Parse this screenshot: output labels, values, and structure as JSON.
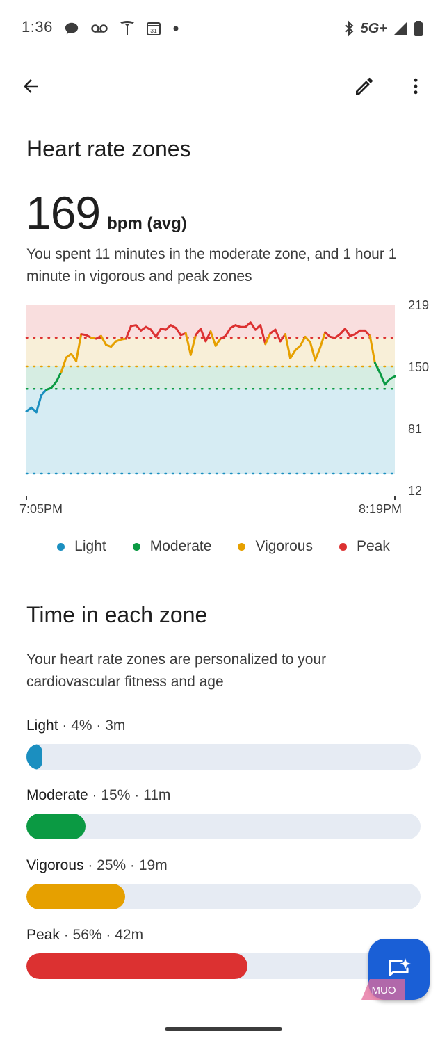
{
  "status_bar": {
    "time": "1:36",
    "left_icons": [
      "chat-bubble-icon",
      "voicemail-icon",
      "tesla-icon",
      "calendar-icon",
      "dot-icon"
    ],
    "calendar_day": "31",
    "network": "5G+",
    "right_icons": [
      "bluetooth-icon",
      "signal-icon",
      "battery-icon"
    ]
  },
  "app_bar": {
    "back_icon": "arrow-back-icon",
    "edit_icon": "pencil-icon",
    "more_icon": "more-vert-icon"
  },
  "header": {
    "title": "Heart rate zones",
    "avg_value": "169",
    "avg_unit": "bpm (avg)",
    "summary": "You spent 11 minutes in the moderate zone, and 1 hour 1 minute in vigorous and peak zones"
  },
  "colors": {
    "light": "#1b8fc0",
    "moderate": "#0b9a43",
    "vigorous": "#e6a000",
    "peak": "#dc3131",
    "light_bg": "#d6ecf3",
    "moderate_bg": "#d6ede2",
    "vigorous_bg": "#f8efd8",
    "peak_bg": "#f9dede",
    "track": "#e6ebf3",
    "fab": "#1a5fd6"
  },
  "chart_data": {
    "type": "line",
    "title": "",
    "xlabel": "",
    "ylabel": "",
    "y_ticks": [
      219,
      150,
      81,
      12
    ],
    "ylim": [
      12,
      219
    ],
    "x_ticks": [
      "7:05PM",
      "8:19PM"
    ],
    "zone_thresholds": {
      "moderate": 125,
      "vigorous": 150,
      "peak": 182
    },
    "grid": "dotted zone threshold lines",
    "series": [
      {
        "x": [
          0,
          1,
          2,
          3,
          4,
          5,
          6,
          7,
          8,
          9,
          10,
          11,
          12,
          13,
          14,
          15,
          16,
          17,
          18,
          19,
          20,
          21,
          22,
          23,
          24,
          25,
          26,
          27,
          28,
          29,
          30,
          31,
          32,
          33,
          34,
          35,
          36,
          37,
          38,
          39,
          40,
          41,
          42,
          43,
          44,
          45,
          46,
          47,
          48,
          49,
          50,
          51,
          52,
          53,
          54,
          55,
          56,
          57,
          58,
          59,
          60,
          61,
          62,
          63,
          64,
          65,
          66,
          67,
          68,
          69,
          70,
          71,
          72,
          73,
          74
        ],
        "y": [
          100,
          104,
          99,
          118,
          124,
          126,
          133,
          144,
          160,
          164,
          156,
          186,
          185,
          182,
          181,
          184,
          174,
          172,
          178,
          180,
          181,
          195,
          196,
          190,
          194,
          191,
          183,
          192,
          191,
          196,
          193,
          185,
          187,
          163,
          185,
          192,
          178,
          189,
          173,
          181,
          184,
          193,
          196,
          194,
          194,
          199,
          191,
          196,
          175,
          187,
          191,
          178,
          186,
          159,
          168,
          173,
          183,
          177,
          157,
          171,
          188,
          183,
          182,
          186,
          192,
          184,
          186,
          190,
          190,
          184,
          154,
          143,
          130,
          136,
          139
        ]
      }
    ],
    "legend": [
      "Light",
      "Moderate",
      "Vigorous",
      "Peak"
    ],
    "legend_position": "bottom"
  },
  "zones_section": {
    "title": "Time in each zone",
    "description": "Your heart rate zones are personalized to your cardiovascular fitness and age",
    "zones": [
      {
        "name": "Light",
        "detail": " · 4% · 3m",
        "fraction": 0.04
      },
      {
        "name": "Moderate",
        "detail": " · 15% · 11m",
        "fraction": 0.15
      },
      {
        "name": "Vigorous",
        "detail": " · 25% · 19m",
        "fraction": 0.25
      },
      {
        "name": "Peak",
        "detail": " · 56% · 42m",
        "fraction": 0.56
      }
    ]
  },
  "fab": {
    "icon": "chat-sparkle-icon"
  },
  "watermark": {
    "text": "MUO"
  }
}
